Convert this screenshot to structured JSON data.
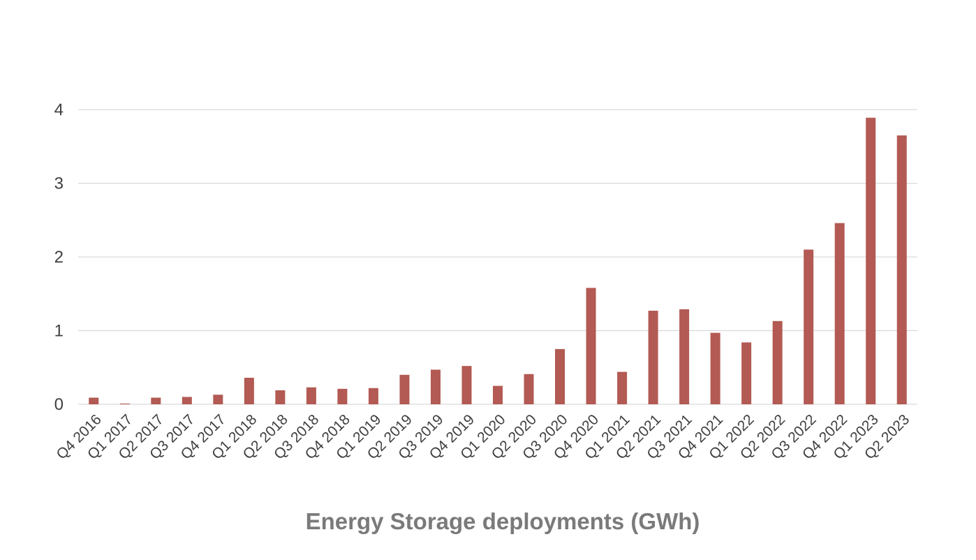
{
  "chart_data": {
    "type": "bar",
    "title": "Energy Storage deployments (GWh)",
    "xlabel": "",
    "ylabel": "",
    "ylim": [
      0,
      4
    ],
    "yticks": [
      0,
      1,
      2,
      3,
      4
    ],
    "grid": true,
    "categories": [
      "Q4 2016",
      "Q1 2017",
      "Q2 2017",
      "Q3 2017",
      "Q4 2017",
      "Q1 2018",
      "Q2 2018",
      "Q3 2018",
      "Q4 2018",
      "Q1 2019",
      "Q2 2019",
      "Q3 2019",
      "Q4 2019",
      "Q1 2020",
      "Q2 2020",
      "Q3 2020",
      "Q4 2020",
      "Q1 2021",
      "Q2 2021",
      "Q3 2021",
      "Q4 2021",
      "Q1 2022",
      "Q2 2022",
      "Q3 2022",
      "Q4 2022",
      "Q1 2023",
      "Q2 2023"
    ],
    "values": [
      0.09,
      0.01,
      0.09,
      0.1,
      0.13,
      0.36,
      0.19,
      0.23,
      0.21,
      0.22,
      0.4,
      0.47,
      0.52,
      0.25,
      0.41,
      0.75,
      1.58,
      0.44,
      1.27,
      1.29,
      0.97,
      0.84,
      1.13,
      2.1,
      2.46,
      3.89,
      3.65
    ],
    "colors": {
      "bar": "#b25a53",
      "grid": "#d9d9d9",
      "axis": "#d9d9d9"
    }
  }
}
